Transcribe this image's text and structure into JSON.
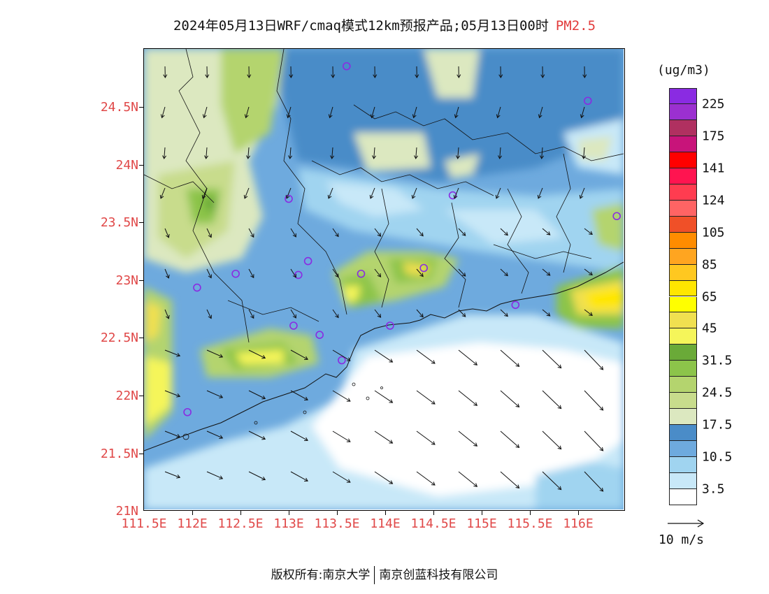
{
  "title": {
    "main": "2024年05月13日WRF/cmaq模式12km预报产品;05月13日00时",
    "variable": "PM2.5"
  },
  "axes": {
    "lat_labels": [
      "24.5N",
      "24N",
      "23.5N",
      "23N",
      "22.5N",
      "22N",
      "21.5N",
      "21N"
    ],
    "lon_labels": [
      "111.5E",
      "112E",
      "112.5E",
      "113E",
      "113.5E",
      "114E",
      "114.5E",
      "115E",
      "115.5E",
      "116E"
    ]
  },
  "colorbar": {
    "unit": "(ug/m3)",
    "labels": [
      "225",
      "175",
      "141",
      "124",
      "105",
      "85",
      "65",
      "45",
      "31.5",
      "24.5",
      "17.5",
      "10.5",
      "3.5"
    ],
    "colors": [
      "#8a2be2",
      "#9b30d0",
      "#b03060",
      "#c8147a",
      "#ff0000",
      "#ff1450",
      "#ff3c50",
      "#ff6464",
      "#f05028",
      "#ff8c00",
      "#ffa520",
      "#ffc820",
      "#ffe600",
      "#ffff00",
      "#f0e050",
      "#f5f55a",
      "#6aaa38",
      "#8cc44a",
      "#b4d46e",
      "#c8dc8c",
      "#dce8c0",
      "#4a8cc8",
      "#6eaade",
      "#a0d4f0",
      "#c8e8f8",
      "#ffffff"
    ]
  },
  "wind_key": {
    "label": "10 m/s"
  },
  "footer": {
    "copyright": "版权所有:南京大学",
    "company": "南京创蓝科技有限公司"
  },
  "stations": [
    {
      "lon": 113.6,
      "lat": 24.85
    },
    {
      "lon": 116.1,
      "lat": 24.55
    },
    {
      "lon": 113.0,
      "lat": 23.7
    },
    {
      "lon": 114.7,
      "lat": 23.73
    },
    {
      "lon": 116.4,
      "lat": 23.55
    },
    {
      "lon": 113.2,
      "lat": 23.16
    },
    {
      "lon": 113.1,
      "lat": 23.04
    },
    {
      "lon": 113.75,
      "lat": 23.05
    },
    {
      "lon": 114.4,
      "lat": 23.1
    },
    {
      "lon": 112.45,
      "lat": 23.05
    },
    {
      "lon": 112.05,
      "lat": 22.93
    },
    {
      "lon": 113.05,
      "lat": 22.6
    },
    {
      "lon": 113.32,
      "lat": 22.52
    },
    {
      "lon": 114.05,
      "lat": 22.6
    },
    {
      "lon": 115.35,
      "lat": 22.78
    },
    {
      "lon": 113.55,
      "lat": 22.3
    },
    {
      "lon": 111.95,
      "lat": 21.85
    }
  ],
  "map_extent": {
    "lon": [
      111.5,
      116.7
    ],
    "lat": [
      21.0,
      25.0
    ]
  }
}
